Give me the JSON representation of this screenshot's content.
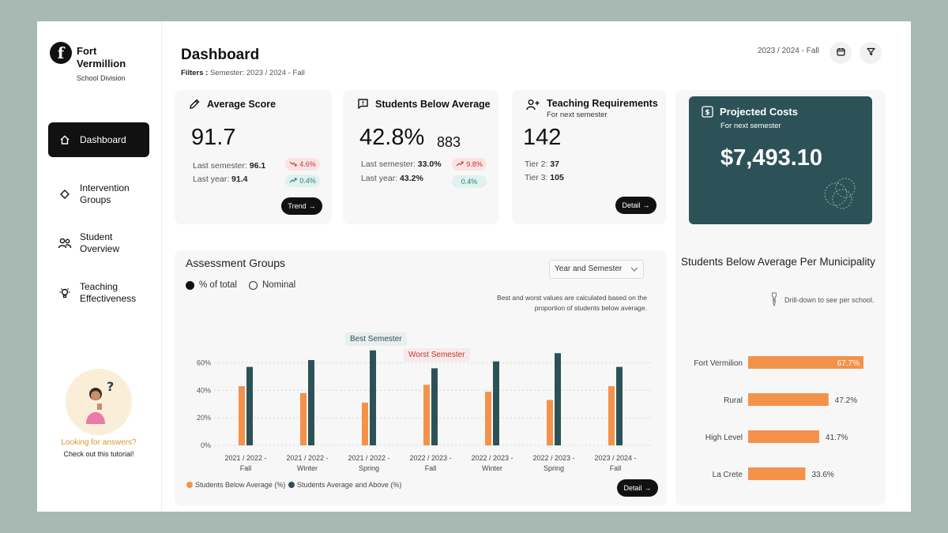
{
  "sidebar": {
    "brand_line1": "Fort",
    "brand_line2": "Vermillion",
    "brand_sub": "School Division",
    "items": [
      {
        "label": "Dashboard"
      },
      {
        "label1": "Intervention",
        "label2": "Groups"
      },
      {
        "label1": "Student",
        "label2": "Overview"
      },
      {
        "label1": "Teaching",
        "label2": "Effectiveness"
      }
    ],
    "helper_title": "Looking for answers?",
    "helper_sub": "Check out this tutorial!"
  },
  "header": {
    "title": "Dashboard",
    "filters_label": "Filters :",
    "filters_value": "Semester: 2023 / 2024 - Fall",
    "semester": "2023 / 2024 - Fall"
  },
  "kpi_average": {
    "title": "Average Score",
    "value": "91.7",
    "last_sem_label": "Last semester:",
    "last_sem_value": "96.1",
    "last_year_label": "Last year:",
    "last_year_value": "91.4",
    "pill1": "4.6%",
    "pill2": "0.4%",
    "button": "Trend"
  },
  "kpi_below": {
    "title": "Students Below Average",
    "value": "42.8%",
    "count": "883",
    "last_sem_label": "Last semester:",
    "last_sem_value": "33.0%",
    "last_year_label": "Last year:",
    "last_year_value": "43.2%",
    "pill1": "9.8%",
    "pill2": "0.4%"
  },
  "kpi_teaching": {
    "title": "Teaching Requirements",
    "subtitle": "For next semester",
    "value": "142",
    "tier2_label": "Tier 2:",
    "tier2_value": "37",
    "tier3_label": "Tier 3:",
    "tier3_value": "105",
    "button": "Detail"
  },
  "kpi_cost": {
    "title": "Projected Costs",
    "subtitle": "For next semester",
    "value": "$7,493.10"
  },
  "assessment": {
    "title": "Assessment Groups",
    "radio_on": "% of total",
    "radio_off": "Nominal",
    "select": "Year and Semester",
    "note1": "Best and worst values are calculated based on the",
    "note2": "proportion of students below average.",
    "best_label": "Best Semester",
    "worst_label": "Worst Semester",
    "legend_a": "Students Below Average (%)",
    "legend_b": "Students Average and Above (%)",
    "button": "Detail",
    "colors": {
      "below": "#f4924a",
      "above": "#2c5257"
    }
  },
  "municipality": {
    "title": "Students Below Average Per Municipality",
    "note": "Drill-down to see per school."
  },
  "chart_data": [
    {
      "type": "bar",
      "categories": [
        "2021 / 2022 - Fall",
        "2021 / 2022 - Winter",
        "2021 / 2022 - Spring",
        "2022 / 2023 - Fall",
        "2022 / 2023 - Winter",
        "2022 / 2023 - Spring",
        "2023 / 2024 - Fall"
      ],
      "category_lines": [
        [
          "2021 / 2022 -",
          "Fall"
        ],
        [
          "2021 / 2022 -",
          "Winter"
        ],
        [
          "2021 / 2022 -",
          "Spring"
        ],
        [
          "2022 / 2023 -",
          "Fall"
        ],
        [
          "2022 / 2023 -",
          "Winter"
        ],
        [
          "2022 / 2023 -",
          "Spring"
        ],
        [
          "2023 / 2024 -",
          "Fall"
        ]
      ],
      "series": [
        {
          "name": "Students Below Average (%)",
          "values": [
            43,
            38,
            31,
            44,
            39,
            33,
            43
          ]
        },
        {
          "name": "Students Average and Above (%)",
          "values": [
            57,
            62,
            69,
            56,
            61,
            67,
            57
          ]
        }
      ],
      "yticks": [
        "0%",
        "20%",
        "40%",
        "60%"
      ],
      "ylim": [
        0,
        70
      ],
      "grid": true
    },
    {
      "type": "bar",
      "orientation": "horizontal",
      "categories": [
        "Fort Vermilion",
        "Rural",
        "High Level",
        "La Crete"
      ],
      "values": [
        67.7,
        47.2,
        41.7,
        33.6
      ],
      "labels": [
        "67.7%",
        "47.2%",
        "41.7%",
        "33.6%"
      ]
    }
  ]
}
